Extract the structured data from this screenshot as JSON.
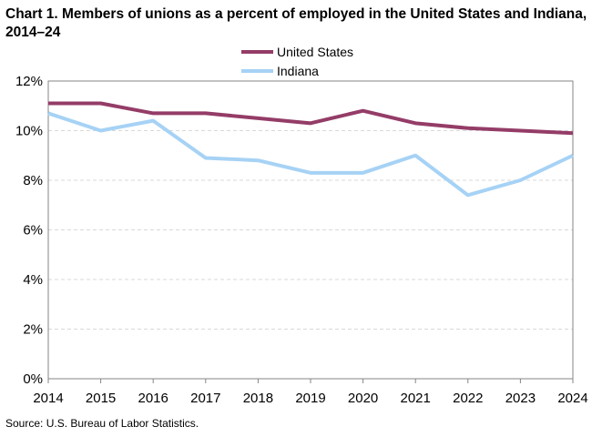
{
  "chart": {
    "title": "Chart 1. Members of unions as a percent of employed  in the United States and Indiana, 2014–24",
    "source": "Source:  U.S. Bureau  of Labor Statistics."
  },
  "colors": {
    "united_states": "#943C67",
    "indiana": "#A6D2F5",
    "grid": "#D9D9D9",
    "axis": "#868686"
  },
  "chart_data": {
    "type": "line",
    "title": "Chart 1. Members of unions as a percent of employed  in the United States and Indiana, 2014–24",
    "xlabel": "",
    "ylabel": "",
    "x": [
      "2014",
      "2015",
      "2016",
      "2017",
      "2018",
      "2019",
      "2020",
      "2021",
      "2022",
      "2023",
      "2024"
    ],
    "ylim": [
      0,
      12
    ],
    "yticks": [
      "0%",
      "2%",
      "4%",
      "6%",
      "8%",
      "10%",
      "12%"
    ],
    "grid": true,
    "legend_position": "top-center",
    "series": [
      {
        "name": "United States",
        "values": [
          11.1,
          11.1,
          10.7,
          10.7,
          10.5,
          10.3,
          10.8,
          10.3,
          10.1,
          10.0,
          9.9
        ]
      },
      {
        "name": "Indiana",
        "values": [
          10.7,
          10.0,
          10.4,
          8.9,
          8.8,
          8.3,
          8.3,
          9.0,
          7.4,
          8.0,
          9.0
        ]
      }
    ]
  }
}
